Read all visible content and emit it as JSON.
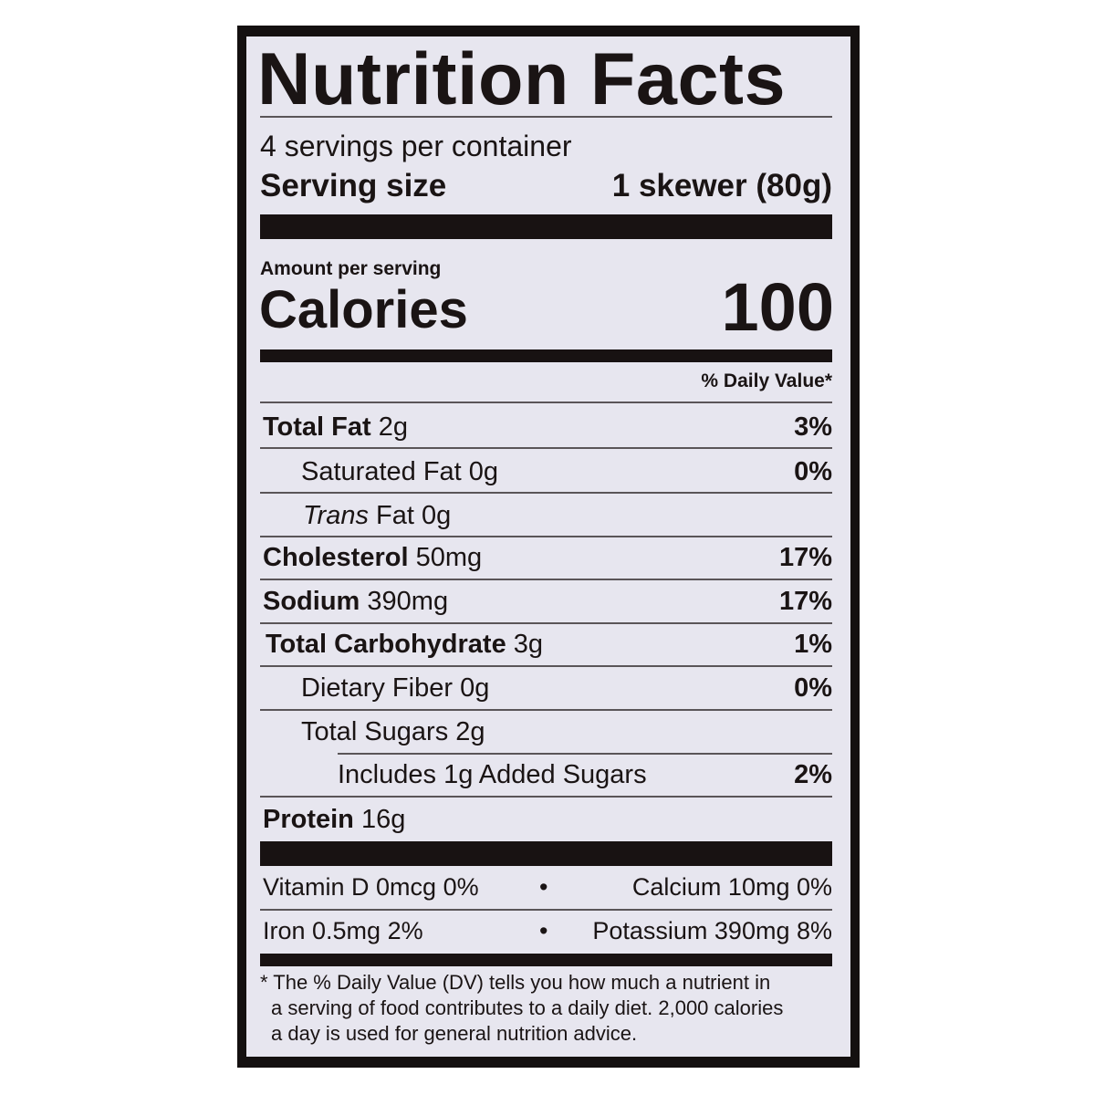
{
  "title": "Nutrition Facts",
  "servings_per_container": "4 servings per container",
  "serving_size_label": "Serving size",
  "serving_size_value": "1 skewer (80g)",
  "amount_per_serving": "Amount per serving",
  "calories_label": "Calories",
  "calories_value": "100",
  "daily_value_header": "% Daily Value*",
  "nutrients": [
    {
      "name": "Total Fat",
      "amount": "2g",
      "dv": "3%"
    },
    {
      "name": "Saturated Fat",
      "amount": "0g",
      "dv": "0%"
    },
    {
      "name": "Trans",
      "name_rest": "Fat",
      "amount": "0g",
      "dv": ""
    },
    {
      "name": "Cholesterol",
      "amount": "50mg",
      "dv": "17%"
    },
    {
      "name": "Sodium",
      "amount": "390mg",
      "dv": "17%"
    },
    {
      "name": "Total Carbohydrate",
      "amount": "3g",
      "dv": "1%"
    },
    {
      "name": "Dietary Fiber",
      "amount": "0g",
      "dv": "0%"
    },
    {
      "name": "Total Sugars",
      "amount": "2g",
      "dv": ""
    },
    {
      "name": "Includes 1g Added Sugars",
      "amount": "",
      "dv": "2%"
    },
    {
      "name": "Protein",
      "amount": "16g",
      "dv": ""
    }
  ],
  "micros": {
    "vitamin_d": "Vitamin D 0mcg 0%",
    "calcium": "Calcium 10mg 0%",
    "iron": "Iron 0.5mg 2%",
    "potassium": "Potassium 390mg 8%",
    "bullet": "•"
  },
  "footnote": [
    "* The % Daily Value (DV) tells you how much a nutrient in",
    "a serving of food contributes to a daily diet. 2,000 calories",
    "a day is used for general nutrition advice."
  ]
}
